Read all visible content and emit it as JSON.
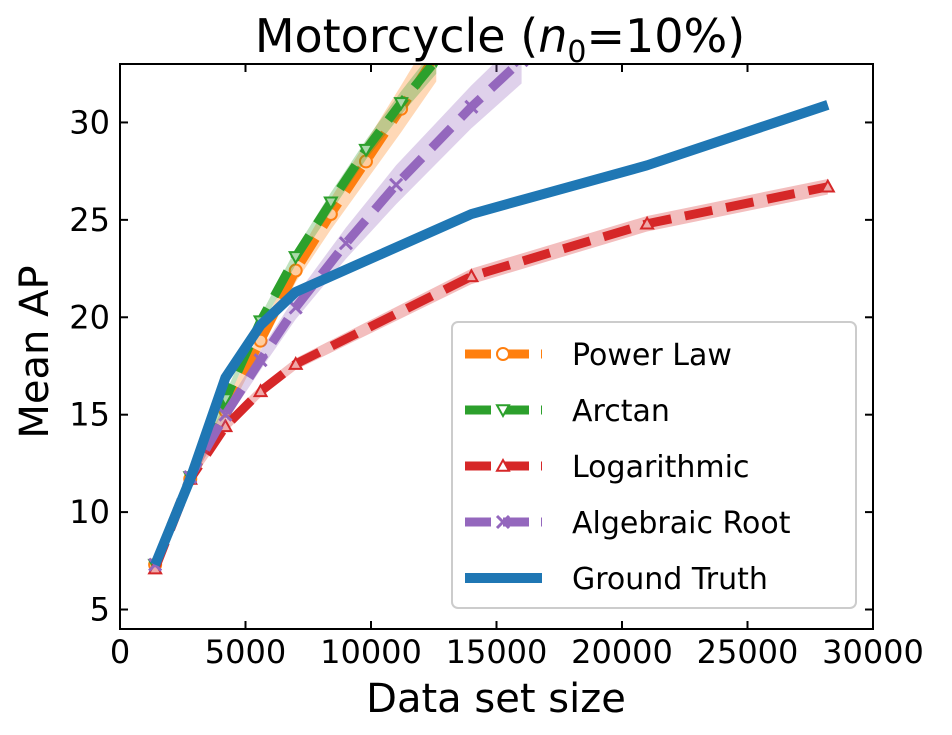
{
  "chart_data": {
    "type": "line",
    "title_main": "Motorcycle (",
    "title_var": "n",
    "title_sub": "0",
    "title_rest": "=10%)",
    "xlabel": "Data set size",
    "ylabel": "Mean AP",
    "xlim": [
      0,
      30000
    ],
    "ylim": [
      4,
      33
    ],
    "xticks": [
      0,
      5000,
      10000,
      15000,
      20000,
      25000,
      30000
    ],
    "xtick_labels": [
      "0",
      "5000",
      "10000",
      "15000",
      "20000",
      "25000",
      "30000"
    ],
    "yticks": [
      5,
      10,
      15,
      20,
      25,
      30
    ],
    "ytick_labels": [
      "5",
      "10",
      "15",
      "20",
      "25",
      "30"
    ],
    "grid": false,
    "legend_position": "lower-right",
    "series": [
      {
        "name": "Power Law",
        "color": "#ff7f0e",
        "style": "dashed",
        "marker": "circle",
        "x": [
          1400,
          2800,
          4200,
          5600,
          7000,
          8400,
          9800,
          11200,
          12600
        ],
        "y": [
          7.3,
          11.7,
          15.2,
          18.8,
          22.4,
          25.3,
          28.0,
          30.7,
          33.5
        ],
        "band": [
          0.3,
          0.3,
          0.4,
          0.5,
          0.6,
          0.8,
          1.0,
          1.2,
          1.4
        ]
      },
      {
        "name": "Arctan",
        "color": "#2ca02c",
        "style": "dashed",
        "marker": "triangle-down",
        "x": [
          1400,
          2800,
          4200,
          5600,
          7000,
          8400,
          9800,
          11200,
          12600
        ],
        "y": [
          7.3,
          11.8,
          15.8,
          19.8,
          23.1,
          25.9,
          28.6,
          31.0,
          33.2
        ],
        "band": [
          0.2,
          0.2,
          0.3,
          0.3,
          0.4,
          0.5,
          0.5,
          0.6,
          0.7
        ]
      },
      {
        "name": "Logarithmic",
        "color": "#d62728",
        "style": "dashed",
        "marker": "triangle-up",
        "x": [
          1400,
          2800,
          4200,
          5600,
          7000,
          14000,
          21000,
          28200
        ],
        "y": [
          7.1,
          11.7,
          14.4,
          16.2,
          17.6,
          22.1,
          24.8,
          26.7
        ],
        "band": [
          0.2,
          0.2,
          0.3,
          0.3,
          0.3,
          0.4,
          0.4,
          0.4
        ]
      },
      {
        "name": "Algebraic Root",
        "color": "#9467bd",
        "style": "dashed",
        "marker": "x",
        "x": [
          1400,
          2800,
          4200,
          5600,
          7000,
          9000,
          11000,
          14000,
          16000
        ],
        "y": [
          7.3,
          11.8,
          15.0,
          17.8,
          20.5,
          23.8,
          26.8,
          30.8,
          33.2
        ],
        "band": [
          0.2,
          0.3,
          0.4,
          0.5,
          0.6,
          0.8,
          1.0,
          1.1,
          1.2
        ]
      },
      {
        "name": "Ground Truth",
        "color": "#1f77b4",
        "style": "solid",
        "marker": "none",
        "x": [
          1400,
          2800,
          4200,
          5600,
          7000,
          14000,
          21000,
          28200
        ],
        "y": [
          7.3,
          11.7,
          16.9,
          19.6,
          21.3,
          25.3,
          27.8,
          30.9
        ]
      }
    ]
  }
}
